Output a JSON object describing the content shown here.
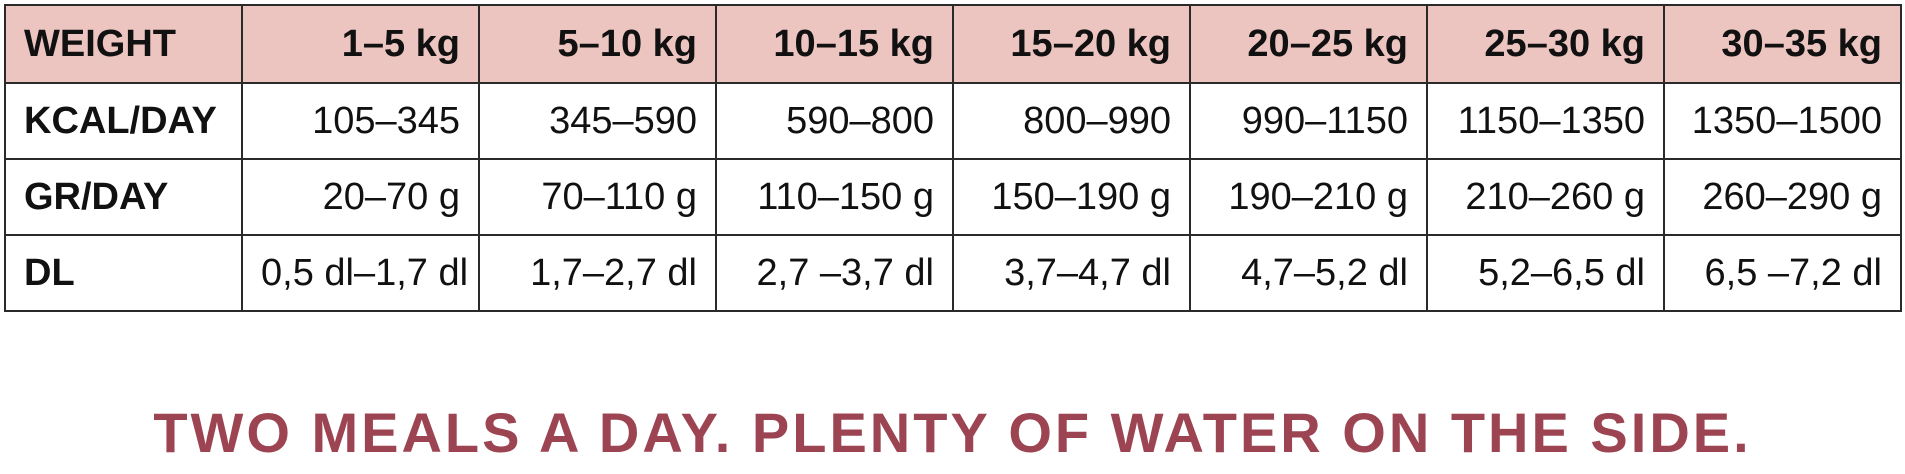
{
  "table": {
    "header": {
      "label": "WEIGHT",
      "columns": [
        "1–5 kg",
        "5–10 kg",
        "10–15 kg",
        "15–20 kg",
        "20–25 kg",
        "25–30 kg",
        "30–35 kg"
      ]
    },
    "rows": [
      {
        "label": "KCAL/DAY",
        "values": [
          "105–345",
          "345–590",
          "590–800",
          "800–990",
          "990–1150",
          "1150–1350",
          "1350–1500"
        ]
      },
      {
        "label": "GR/DAY",
        "values": [
          "20–70 g",
          "70–110 g",
          "110–150 g",
          "150–190 g",
          "190–210 g",
          "210–260 g",
          "260–290 g"
        ]
      },
      {
        "label": "DL",
        "values": [
          "0,5 dl–1,7 dl",
          "1,7–2,7 dl",
          "2,7 –3,7 dl",
          "3,7–4,7 dl",
          "4,7–5,2 dl",
          "5,2–6,5 dl",
          "6,5 –7,2 dl"
        ]
      }
    ]
  },
  "tagline": "TWO MEALS A DAY. PLENTY OF WATER ON THE SIDE.",
  "colors": {
    "header_background": "#ecc4c0",
    "tagline": "#9c4452",
    "border": "#2a2a2a"
  }
}
